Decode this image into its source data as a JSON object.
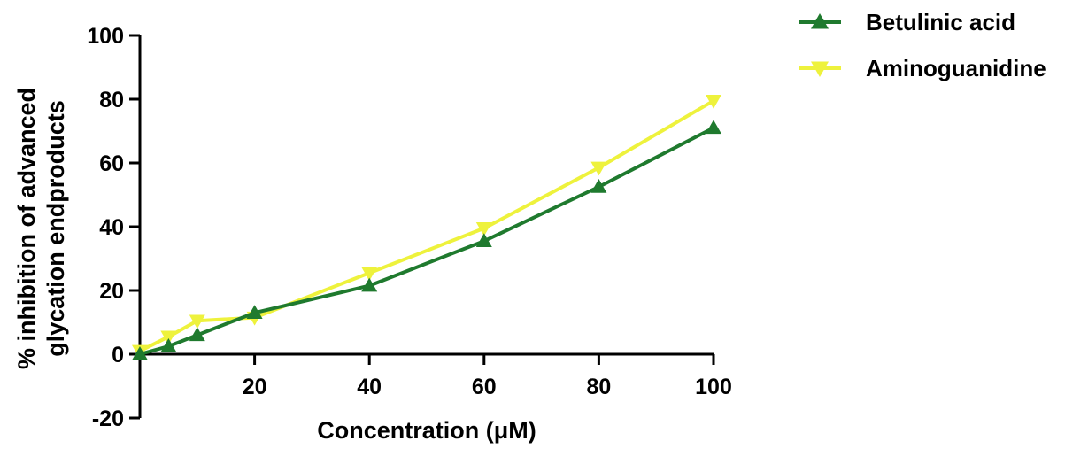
{
  "chart_data": {
    "type": "line",
    "title": "",
    "xlabel": "Concentration (μM)",
    "ylabel_lines": [
      "% inhibition of advanced",
      "glycation endproducts"
    ],
    "xlim": [
      0,
      100
    ],
    "ylim": [
      -20,
      100
    ],
    "x_ticks": [
      20,
      40,
      60,
      80,
      100
    ],
    "y_ticks": [
      -20,
      0,
      20,
      40,
      60,
      80,
      100
    ],
    "grid": false,
    "legend_position": "top-right",
    "series": [
      {
        "name": "Betulinic acid",
        "color": "#1f7a2e",
        "marker": "triangle-up",
        "x": [
          0,
          5,
          10,
          20,
          40,
          60,
          80,
          100
        ],
        "y": [
          0,
          2.5,
          6,
          13,
          21.5,
          35.5,
          52.5,
          71
        ]
      },
      {
        "name": "Aminoguanidine",
        "color": "#eef23c",
        "marker": "triangle-down",
        "x": [
          0,
          5,
          10,
          20,
          40,
          60,
          80,
          100
        ],
        "y": [
          1,
          5.5,
          10.5,
          11.5,
          25.5,
          39.5,
          58.5,
          79.5
        ]
      }
    ]
  }
}
